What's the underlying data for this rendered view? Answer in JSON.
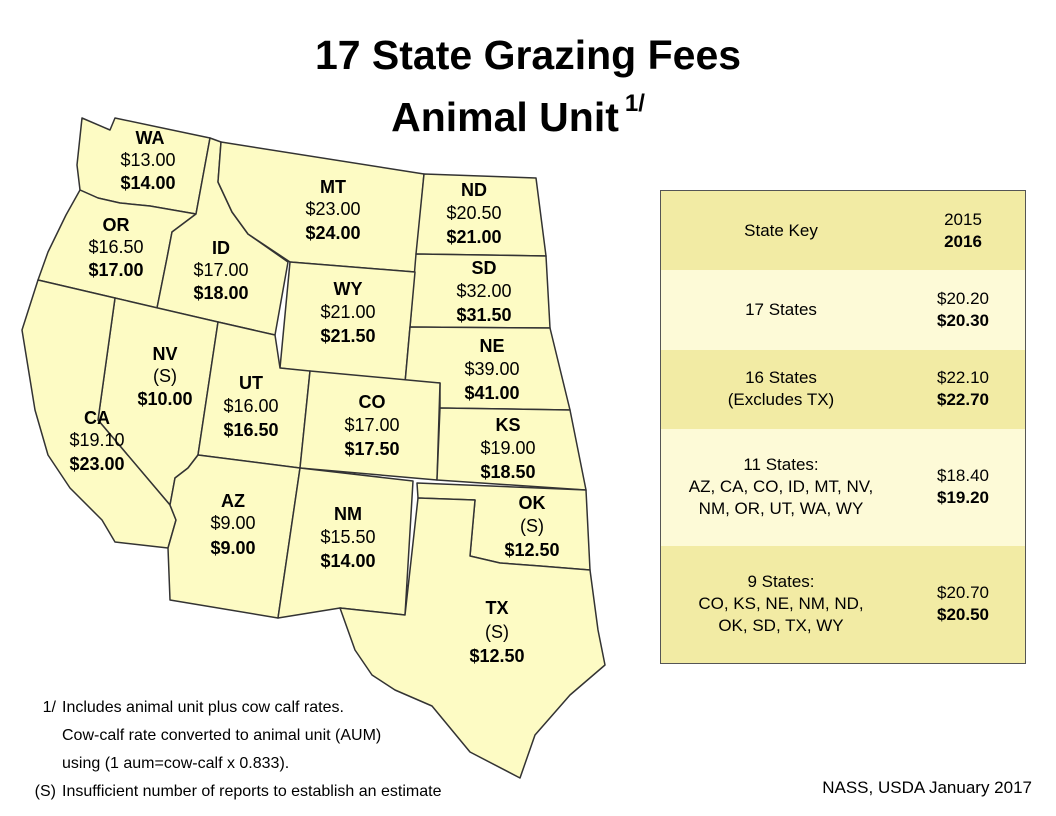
{
  "title": {
    "line1": "17 State Grazing Fees",
    "line2": "Animal Unit",
    "footnote_mark": "1/"
  },
  "states": [
    {
      "abbr": "WA",
      "fee_2015": "$13.00",
      "fee_2016": "$14.00"
    },
    {
      "abbr": "OR",
      "fee_2015": "$16.50",
      "fee_2016": "$17.00"
    },
    {
      "abbr": "CA",
      "fee_2015": "$19.10",
      "fee_2016": "$23.00"
    },
    {
      "abbr": "ID",
      "fee_2015": "$17.00",
      "fee_2016": "$18.00"
    },
    {
      "abbr": "NV",
      "fee_2015": "(S)",
      "fee_2016": "$10.00"
    },
    {
      "abbr": "MT",
      "fee_2015": "$23.00",
      "fee_2016": "$24.00"
    },
    {
      "abbr": "WY",
      "fee_2015": "$21.00",
      "fee_2016": "$21.50"
    },
    {
      "abbr": "UT",
      "fee_2015": "$16.00",
      "fee_2016": "$16.50"
    },
    {
      "abbr": "AZ",
      "fee_2015": "$9.00",
      "fee_2016": "$9.00"
    },
    {
      "abbr": "CO",
      "fee_2015": "$17.00",
      "fee_2016": "$17.50"
    },
    {
      "abbr": "NM",
      "fee_2015": "$15.50",
      "fee_2016": "$14.00"
    },
    {
      "abbr": "ND",
      "fee_2015": "$20.50",
      "fee_2016": "$21.00"
    },
    {
      "abbr": "SD",
      "fee_2015": "$32.00",
      "fee_2016": "$31.50"
    },
    {
      "abbr": "NE",
      "fee_2015": "$39.00",
      "fee_2016": "$41.00"
    },
    {
      "abbr": "KS",
      "fee_2015": "$19.00",
      "fee_2016": "$18.50"
    },
    {
      "abbr": "OK",
      "fee_2015": "(S)",
      "fee_2016": "$12.50"
    },
    {
      "abbr": "TX",
      "fee_2015": "(S)",
      "fee_2016": "$12.50"
    }
  ],
  "key_table": {
    "header": {
      "label": "State Key",
      "year_2015": "2015",
      "year_2016": "2016"
    },
    "rows": [
      {
        "line1": "17 States",
        "line2": "",
        "line3": "",
        "fee_2015": "$20.20",
        "fee_2016": "$20.30"
      },
      {
        "line1": "16 States",
        "line2": "(Excludes TX)",
        "line3": "",
        "fee_2015": "$22.10",
        "fee_2016": "$22.70"
      },
      {
        "line1": "11 States:",
        "line2": "AZ, CA, CO, ID, MT, NV,",
        "line3": "NM, OR, UT, WA, WY",
        "fee_2015": "$18.40",
        "fee_2016": "$19.20"
      },
      {
        "line1": "9 States:",
        "line2": "CO, KS, NE, NM, ND,",
        "line3": "OK, SD, TX, WY",
        "fee_2015": "$20.70",
        "fee_2016": "$20.50"
      }
    ]
  },
  "notes": {
    "n1_mark": "1/",
    "n1_line1": "Includes animal unit plus cow calf rates.",
    "n1_line2": "Cow-calf rate converted to animal unit (AUM)",
    "n1_line3": "using (1 aum=cow-calf x 0.833).",
    "s_mark": "(S)",
    "s_text": "Insufficient number of reports to establish an estimate"
  },
  "source": "NASS, USDA January 2017",
  "colors": {
    "state_fill": "#fdfbc4",
    "key_dark": "#f2eba4",
    "key_light": "#fdfad7"
  }
}
